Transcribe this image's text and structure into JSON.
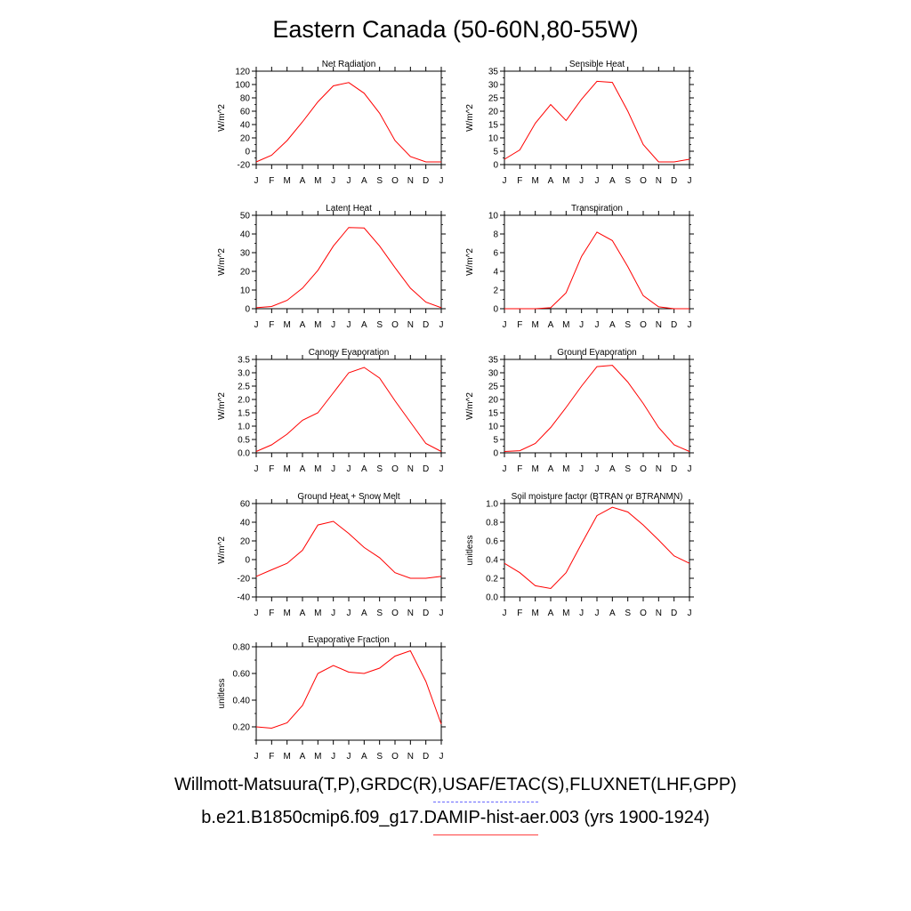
{
  "title": "Eastern Canada (50-60N,80-55W)",
  "legend": [
    {
      "label": "Willmott-Matsuura(T,P),GRDC(R),USAF/ETAC(S),FLUXNET(LHF,GPP)",
      "color": "#6a6aff",
      "style": "dashed"
    },
    {
      "label": "b.e21.B1850cmip6.f09_g17.DAMIP-hist-aer.003 (yrs 1900-1924)",
      "color": "#ff0000",
      "style": "solid"
    }
  ],
  "chart_data": [
    {
      "type": "line",
      "title": "Net Radiation",
      "ylabel": "W/m^2",
      "ylim": [
        -20,
        120
      ],
      "yticks": [
        -20,
        0,
        20,
        40,
        60,
        80,
        100,
        120
      ],
      "ytick_labels": [
        "-20",
        "0",
        "20",
        "40",
        "60",
        "80",
        "100",
        "120"
      ],
      "x": [
        "J",
        "F",
        "M",
        "A",
        "M",
        "J",
        "J",
        "A",
        "S",
        "O",
        "N",
        "D",
        "J"
      ],
      "series": [
        {
          "color": "#ff0000",
          "values": [
            -16,
            -6,
            16,
            44,
            74,
            98,
            103,
            87,
            57,
            16,
            -8,
            -16,
            -16
          ]
        }
      ]
    },
    {
      "type": "line",
      "title": "Sensible Heat",
      "ylabel": "W/m^2",
      "ylim": [
        0,
        35
      ],
      "yticks": [
        0,
        5,
        10,
        15,
        20,
        25,
        30,
        35
      ],
      "ytick_labels": [
        "0",
        "5",
        "10",
        "15",
        "20",
        "25",
        "30",
        "35"
      ],
      "x": [
        "J",
        "F",
        "M",
        "A",
        "M",
        "J",
        "J",
        "A",
        "S",
        "O",
        "N",
        "D",
        "J"
      ],
      "series": [
        {
          "color": "#ff0000",
          "values": [
            2,
            5.5,
            15.5,
            22.5,
            16.5,
            24.5,
            31.2,
            30.8,
            20,
            7.5,
            1,
            1,
            2
          ]
        }
      ]
    },
    {
      "type": "line",
      "title": "Latent Heat",
      "ylabel": "W/m^2",
      "ylim": [
        0,
        50
      ],
      "yticks": [
        0,
        10,
        20,
        30,
        40,
        50
      ],
      "ytick_labels": [
        "0",
        "10",
        "20",
        "30",
        "40",
        "50"
      ],
      "x": [
        "J",
        "F",
        "M",
        "A",
        "M",
        "J",
        "J",
        "A",
        "S",
        "O",
        "N",
        "D",
        "J"
      ],
      "series": [
        {
          "color": "#ff0000",
          "values": [
            0.5,
            1.2,
            4.5,
            11,
            20.5,
            33.5,
            43.5,
            43.2,
            33.5,
            22,
            11,
            3.5,
            0.5
          ]
        }
      ]
    },
    {
      "type": "line",
      "title": "Transpiration",
      "ylabel": "W/m^2",
      "ylim": [
        0,
        10
      ],
      "yticks": [
        0,
        2,
        4,
        6,
        8,
        10
      ],
      "ytick_labels": [
        "0",
        "2",
        "4",
        "6",
        "8",
        "10"
      ],
      "x": [
        "J",
        "F",
        "M",
        "A",
        "M",
        "J",
        "J",
        "A",
        "S",
        "O",
        "N",
        "D",
        "J"
      ],
      "series": [
        {
          "color": "#ff0000",
          "values": [
            0,
            0,
            0,
            0.1,
            1.7,
            5.6,
            8.2,
            7.3,
            4.5,
            1.4,
            0.2,
            0,
            0
          ]
        }
      ]
    },
    {
      "type": "line",
      "title": "Canopy Evaporation",
      "ylabel": "W/m^2",
      "ylim": [
        0,
        3.5
      ],
      "yticks": [
        0,
        0.5,
        1,
        1.5,
        2,
        2.5,
        3,
        3.5
      ],
      "ytick_labels": [
        "0.0",
        "0.5",
        "1.0",
        "1.5",
        "2.0",
        "2.5",
        "3.0",
        "3.5"
      ],
      "x": [
        "J",
        "F",
        "M",
        "A",
        "M",
        "J",
        "J",
        "A",
        "S",
        "O",
        "N",
        "D",
        "J"
      ],
      "series": [
        {
          "color": "#ff0000",
          "values": [
            0.05,
            0.3,
            0.7,
            1.22,
            1.5,
            2.25,
            3.0,
            3.2,
            2.8,
            1.95,
            1.15,
            0.35,
            0.05
          ]
        }
      ]
    },
    {
      "type": "line",
      "title": "Ground Evaporation",
      "ylabel": "W/m^2",
      "ylim": [
        0,
        35
      ],
      "yticks": [
        0,
        5,
        10,
        15,
        20,
        25,
        30,
        35
      ],
      "ytick_labels": [
        "0",
        "5",
        "10",
        "15",
        "20",
        "25",
        "30",
        "35"
      ],
      "x": [
        "J",
        "F",
        "M",
        "A",
        "M",
        "J",
        "J",
        "A",
        "S",
        "O",
        "N",
        "D",
        "J"
      ],
      "series": [
        {
          "color": "#ff0000",
          "values": [
            0.5,
            0.8,
            3.5,
            9.5,
            17,
            25,
            32.3,
            32.8,
            26.5,
            18.5,
            9.5,
            3,
            0.5
          ]
        }
      ]
    },
    {
      "type": "line",
      "title": "Ground Heat + Snow Melt",
      "ylabel": "W/m^2",
      "ylim": [
        -40,
        60
      ],
      "yticks": [
        -40,
        -20,
        0,
        20,
        40,
        60
      ],
      "ytick_labels": [
        "-40",
        "-20",
        "0",
        "20",
        "40",
        "60"
      ],
      "x": [
        "J",
        "F",
        "M",
        "A",
        "M",
        "J",
        "J",
        "A",
        "S",
        "O",
        "N",
        "D",
        "J"
      ],
      "series": [
        {
          "color": "#ff0000",
          "values": [
            -18,
            -11,
            -4,
            10,
            37,
            41,
            28,
            13,
            2,
            -14,
            -20,
            -20,
            -18
          ]
        }
      ]
    },
    {
      "type": "line",
      "title": "Soil moisture factor (BTRAN or BTRANMN)",
      "ylabel": "unitless",
      "ylim": [
        0,
        1
      ],
      "yticks": [
        0,
        0.2,
        0.4,
        0.6,
        0.8,
        1
      ],
      "ytick_labels": [
        "0.0",
        "0.2",
        "0.4",
        "0.6",
        "0.8",
        "1.0"
      ],
      "x": [
        "J",
        "F",
        "M",
        "A",
        "M",
        "J",
        "J",
        "A",
        "S",
        "O",
        "N",
        "D",
        "J"
      ],
      "series": [
        {
          "color": "#ff0000",
          "values": [
            0.36,
            0.26,
            0.12,
            0.09,
            0.26,
            0.57,
            0.87,
            0.96,
            0.91,
            0.77,
            0.61,
            0.44,
            0.36
          ]
        }
      ]
    },
    {
      "type": "line",
      "title": "Evaporative Fraction",
      "ylabel": "unitless",
      "ylim": [
        0.1,
        0.8
      ],
      "yticks": [
        0.2,
        0.4,
        0.6,
        0.8
      ],
      "ytick_labels": [
        "0.20",
        "0.40",
        "0.60",
        "0.80"
      ],
      "x": [
        "J",
        "F",
        "M",
        "A",
        "M",
        "J",
        "J",
        "A",
        "S",
        "O",
        "N",
        "D",
        "J"
      ],
      "series": [
        {
          "color": "#ff0000",
          "values": [
            0.2,
            0.19,
            0.23,
            0.36,
            0.6,
            0.66,
            0.61,
            0.6,
            0.64,
            0.73,
            0.77,
            0.54,
            0.22
          ]
        }
      ]
    }
  ]
}
